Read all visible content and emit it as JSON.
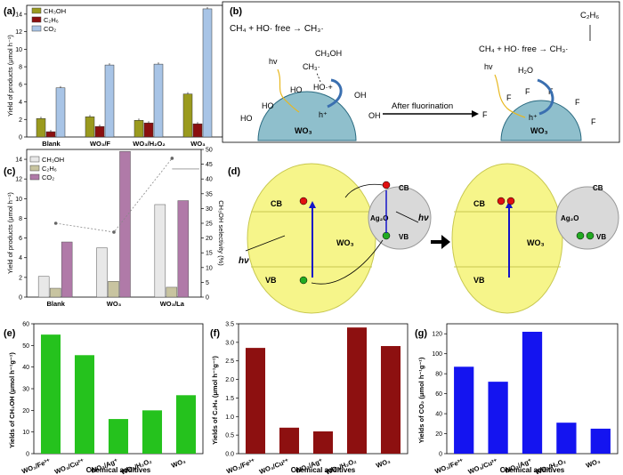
{
  "colors": {
    "olive": "#9a9a1e",
    "maroon": "#8b0f0f",
    "lightblue": "#a8c4e6",
    "green": "#25c21d",
    "darkred": "#8d1010",
    "blue": "#1414f0",
    "yellow": "#f6f58a",
    "gray": "#d9d9d9",
    "wo3": "#8fbfcc"
  },
  "panels": {
    "a": "(a)",
    "b": "(b)",
    "c": "(c)",
    "d": "(d)",
    "e": "(e)",
    "f": "(f)",
    "g": "(g)"
  },
  "chart_data": [
    {
      "id": "a",
      "type": "bar",
      "categories": [
        "Blank",
        "WO3/F",
        "WO3/H2O2",
        "WO3"
      ],
      "category_labels": [
        "Blank",
        "WO₃/F",
        "WO₃/H₂O₂",
        "WO₃"
      ],
      "series": [
        {
          "name": "CH3OH",
          "label": "CH₃OH",
          "values": [
            2.1,
            2.3,
            1.9,
            4.9
          ]
        },
        {
          "name": "C2H6",
          "label": "C₂H₆",
          "values": [
            0.6,
            1.2,
            1.6,
            1.5
          ]
        },
        {
          "name": "CO2",
          "label": "CO₂",
          "values": [
            5.6,
            8.2,
            8.3,
            14.6
          ]
        }
      ],
      "ylabel": "Yield of products (μmol h⁻¹)",
      "ylim": [
        0,
        15
      ],
      "yticks": [
        "0",
        "2",
        "4",
        "6",
        "8",
        "10",
        "12",
        "14"
      ]
    },
    {
      "id": "c",
      "type": "bar",
      "categories": [
        "Blank",
        "WO3",
        "WO3/La"
      ],
      "category_labels": [
        "Blank",
        "WO₃",
        "WO₃/La"
      ],
      "series": [
        {
          "name": "CH3OH",
          "label": "CH₃OH",
          "values": [
            2.1,
            5.0,
            9.4
          ]
        },
        {
          "name": "C2H6",
          "label": "C₂H₆",
          "values": [
            0.9,
            1.6,
            1.0
          ]
        },
        {
          "name": "CO2",
          "label": "CO₂",
          "values": [
            5.6,
            14.8,
            9.8
          ]
        }
      ],
      "selectivity": {
        "label": "CH₃OH selectivity (%)",
        "values": [
          25,
          22,
          47
        ],
        "ylim": [
          0,
          50
        ],
        "yticks": [
          "0",
          "5",
          "10",
          "15",
          "20",
          "25",
          "30",
          "35",
          "40",
          "45",
          "50"
        ]
      },
      "ylabel": "Yield of products (μmol h⁻¹)",
      "ylim": [
        0,
        15
      ],
      "yticks": [
        "0",
        "2",
        "4",
        "6",
        "8",
        "10",
        "12",
        "14"
      ]
    },
    {
      "id": "e",
      "type": "bar",
      "categories": [
        "WO3/Fe3+",
        "WO3/Cu2+",
        "WO3/Ag+",
        "WO3/H2O2",
        "WO3"
      ],
      "category_labels": [
        "WO₃/Fe³⁺",
        "WO₃/Cu²⁺",
        "WO₃/Ag⁺",
        "WO₃/H₂O₂",
        "WO₃"
      ],
      "values": [
        55,
        45.5,
        16,
        20,
        27
      ],
      "ylabel": "Yields of CH₃OH (μmol h⁻¹g⁻¹)",
      "xlabel": "Chemical additives",
      "ylim": [
        0,
        60
      ],
      "yticks": [
        "0",
        "10",
        "20",
        "30",
        "40",
        "50",
        "60"
      ]
    },
    {
      "id": "f",
      "type": "bar",
      "categories": [
        "WO3/Fe3+",
        "WO3/Cu2+",
        "WO3/Ag+",
        "WO3/H2O2",
        "WO3"
      ],
      "category_labels": [
        "WO₃/Fe³⁺",
        "WO₃/Cu²⁺",
        "WO₃/Ag⁺",
        "WO₃/H₂O₂",
        "WO₃"
      ],
      "values": [
        2.85,
        0.7,
        0.6,
        3.4,
        2.9
      ],
      "ylabel": "Yields of C₂H₆ (μmol h⁻¹g⁻¹)",
      "xlabel": "Chemical additives",
      "ylim": [
        0,
        3.5
      ],
      "yticks": [
        "0.0",
        "0.5",
        "1.0",
        "1.5",
        "2.0",
        "2.5",
        "3.0",
        "3.5"
      ]
    },
    {
      "id": "g",
      "type": "bar",
      "categories": [
        "WO3/Fe3+",
        "WO3/Cu2+",
        "WO3/Ag+",
        "WO3/H2O2",
        "WO3"
      ],
      "category_labels": [
        "WO₃/Fe³⁺",
        "WO₃/Cu²⁺",
        "WO₃/Ag⁺",
        "WO₃/H₂O₂",
        "WO₃"
      ],
      "values": [
        87,
        72,
        122,
        31,
        25
      ],
      "ylabel": "Yields of CO₂ (μmol h⁻¹g⁻¹)",
      "xlabel": "Chemical additives",
      "ylim": [
        0,
        130
      ],
      "yticks": [
        "0",
        "20",
        "40",
        "60",
        "80",
        "100",
        "120"
      ]
    }
  ],
  "diagram_b": {
    "eq_left": "CH₄  + HO· free → CH₃·",
    "c2h6": "C₂H₆",
    "ch3oh": "CH₃OH",
    "ch3": "CH₃·",
    "hv": "hv",
    "hoplus": "HO·+",
    "hplus": "h⁺",
    "ho": "HO",
    "oh": "OH",
    "wo3": "WO₃",
    "arrow": "After fluorination",
    "eq_right": "CH₄  + HO· free → CH₃·",
    "h2o": "H₂O",
    "f": "F"
  },
  "diagram_d": {
    "cb": "CB",
    "vb": "VB",
    "ag2o": "Ag₂O",
    "wo3": "WO₃",
    "hv": "hν"
  }
}
